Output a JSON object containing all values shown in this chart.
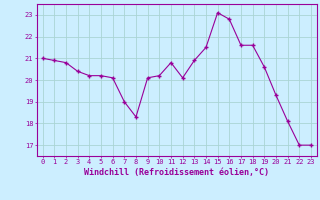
{
  "x": [
    0,
    1,
    2,
    3,
    4,
    5,
    6,
    7,
    8,
    9,
    10,
    11,
    12,
    13,
    14,
    15,
    16,
    17,
    18,
    19,
    20,
    21,
    22,
    23
  ],
  "y": [
    21.0,
    20.9,
    20.8,
    20.4,
    20.2,
    20.2,
    20.1,
    19.0,
    18.3,
    20.1,
    20.2,
    20.8,
    20.1,
    20.9,
    21.5,
    23.1,
    22.8,
    21.6,
    21.6,
    20.6,
    19.3,
    18.1,
    17.0,
    17.0
  ],
  "line_color": "#990099",
  "marker": "+",
  "marker_size": 3,
  "bg_color": "#cceeff",
  "grid_color": "#aad4d4",
  "xlabel": "Windchill (Refroidissement éolien,°C)",
  "xlabel_color": "#990099",
  "tick_color": "#990099",
  "axis_color": "#990099",
  "ylim": [
    16.5,
    23.5
  ],
  "yticks": [
    17,
    18,
    19,
    20,
    21,
    22,
    23
  ],
  "xticks": [
    0,
    1,
    2,
    3,
    4,
    5,
    6,
    7,
    8,
    9,
    10,
    11,
    12,
    13,
    14,
    15,
    16,
    17,
    18,
    19,
    20,
    21,
    22,
    23
  ],
  "tick_fontsize": 5.0,
  "xlabel_fontsize": 6.0
}
